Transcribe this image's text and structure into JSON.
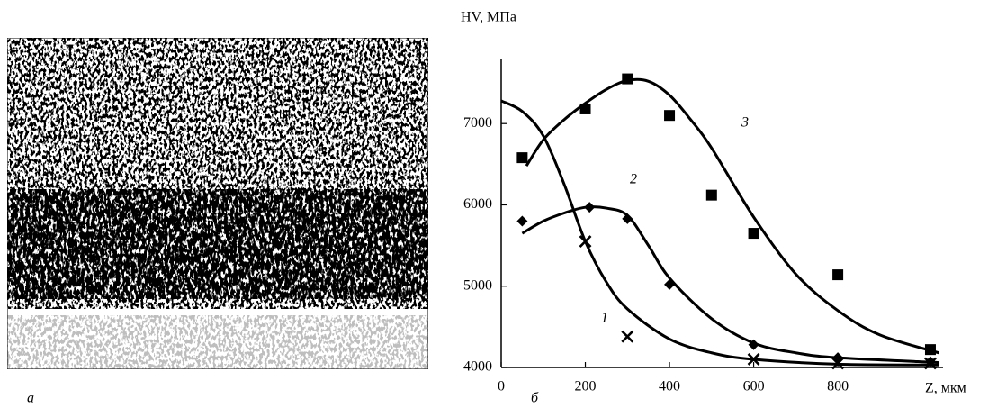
{
  "image_label": "а",
  "chart_data": {
    "type": "scatter-fit",
    "panel_label": "б",
    "x_label": "Z, мкм",
    "y_label": "HV, МПа",
    "xlim": [
      0,
      1050
    ],
    "ylim": [
      4000,
      7800
    ],
    "xticks": [
      0,
      200,
      400,
      600,
      800
    ],
    "yticks": [
      4000,
      5000,
      6000,
      7000
    ],
    "series": [
      {
        "name": "1",
        "marker": "cross",
        "color": "#000000",
        "x": [
          200,
          300,
          600,
          800,
          1020
        ],
        "values": [
          5550,
          4380,
          4100,
          4050,
          4050
        ],
        "curve": {
          "x": [
            0,
            50,
            100,
            150,
            200,
            250,
            300,
            400,
            500,
            600,
            800,
            1040
          ],
          "values": [
            7280,
            7150,
            6850,
            6250,
            5550,
            5050,
            4720,
            4350,
            4180,
            4100,
            4040,
            4030
          ]
        }
      },
      {
        "name": "2",
        "marker": "diamond",
        "color": "#000000",
        "x": [
          50,
          210,
          300,
          400,
          600,
          800,
          1020
        ],
        "values": [
          5800,
          5970,
          5830,
          5020,
          4280,
          4120,
          4070
        ],
        "curve": {
          "x": [
            50,
            100,
            150,
            200,
            250,
            300,
            350,
            400,
            500,
            600,
            700,
            800,
            1040
          ],
          "values": [
            5650,
            5800,
            5900,
            5970,
            5960,
            5870,
            5500,
            5100,
            4600,
            4300,
            4180,
            4120,
            4060
          ]
        }
      },
      {
        "name": "3",
        "marker": "square",
        "color": "#000000",
        "x": [
          50,
          200,
          300,
          400,
          500,
          600,
          800,
          1020
        ],
        "values": [
          6580,
          7180,
          7550,
          7100,
          6120,
          5650,
          5140,
          4220
        ],
        "curve": {
          "x": [
            60,
            100,
            150,
            200,
            250,
            300,
            350,
            400,
            450,
            500,
            600,
            700,
            800,
            900,
            1040
          ],
          "values": [
            6480,
            6800,
            7050,
            7250,
            7420,
            7530,
            7520,
            7350,
            7050,
            6700,
            5850,
            5150,
            4700,
            4400,
            4180
          ]
        }
      }
    ]
  }
}
